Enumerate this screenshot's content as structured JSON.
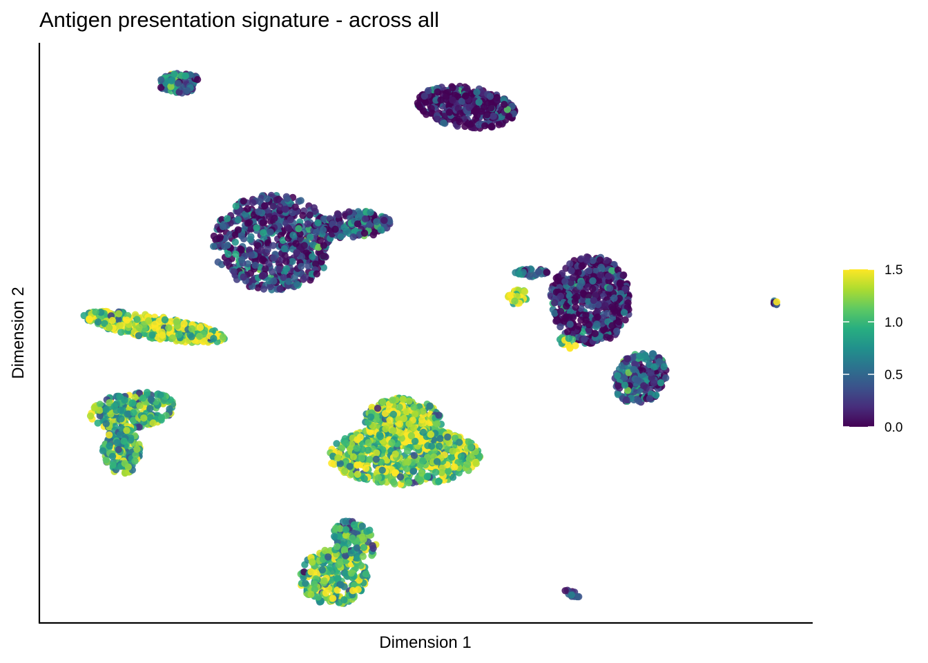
{
  "chart_data": {
    "type": "scatter",
    "title": "Antigen presentation signature - across all",
    "xlabel": "Dimension 1",
    "ylabel": "Dimension 2",
    "xlim": [
      0,
      100
    ],
    "ylim": [
      0,
      100
    ],
    "x_ticks_shown": false,
    "y_ticks_shown": false,
    "grid": false,
    "colorbar": {
      "palette": "viridis",
      "range": [
        0.0,
        1.5
      ],
      "ticks": [
        {
          "value": 0.0,
          "label": "0.0"
        },
        {
          "value": 0.5,
          "label": "0.5"
        },
        {
          "value": 1.0,
          "label": "1.0"
        },
        {
          "value": 1.5,
          "label": "1.5"
        }
      ],
      "placement": "right"
    },
    "clusters": [
      {
        "cx": 18.1,
        "cy": 93.1,
        "rx": 2.6,
        "ry": 1.8,
        "rot": 5,
        "mean": 0.5,
        "n": 90
      },
      {
        "cx": 55.2,
        "cy": 88.9,
        "rx": 6.4,
        "ry": 3.5,
        "rot": -12,
        "mean": 0.05,
        "n": 380
      },
      {
        "cx": 30.2,
        "cy": 65.6,
        "rx": 7.8,
        "ry": 8.3,
        "rot": 0,
        "mean": 0.25,
        "n": 620
      },
      {
        "cx": 40.4,
        "cy": 68.5,
        "rx": 5.0,
        "ry": 2.4,
        "rot": 8,
        "mean": 0.3,
        "n": 160
      },
      {
        "cx": 71.3,
        "cy": 55.7,
        "rx": 5.2,
        "ry": 7.6,
        "rot": 0,
        "mean": 0.1,
        "n": 560
      },
      {
        "cx": 77.7,
        "cy": 42.2,
        "rx": 3.3,
        "ry": 4.6,
        "rot": -15,
        "mean": 0.4,
        "n": 240
      },
      {
        "cx": 68.2,
        "cy": 48.3,
        "rx": 1.5,
        "ry": 1.0,
        "rot": 0,
        "mean": 1.4,
        "n": 14
      },
      {
        "cx": 61.8,
        "cy": 56.2,
        "rx": 1.2,
        "ry": 1.6,
        "rot": 0,
        "mean": 1.3,
        "n": 30
      },
      {
        "cx": 63.8,
        "cy": 60.4,
        "rx": 2.3,
        "ry": 0.8,
        "rot": 0,
        "mean": 0.5,
        "n": 40
      },
      {
        "cx": 95.1,
        "cy": 55.2,
        "rx": 0.35,
        "ry": 0.45,
        "rot": 0,
        "mean": 0.5,
        "n": 10
      },
      {
        "cx": 14.8,
        "cy": 51.0,
        "rx": 9.5,
        "ry": 1.9,
        "rot": -12,
        "mean": 1.25,
        "n": 380
      },
      {
        "cx": 12.0,
        "cy": 36.6,
        "rx": 5.5,
        "ry": 3.1,
        "rot": 12,
        "mean": 0.95,
        "n": 240
      },
      {
        "cx": 10.7,
        "cy": 29.6,
        "rx": 2.5,
        "ry": 4.0,
        "rot": 0,
        "mean": 0.95,
        "n": 150
      },
      {
        "cx": 47.2,
        "cy": 28.8,
        "rx": 9.8,
        "ry": 5.0,
        "rot": 0,
        "mean": 1.15,
        "n": 720
      },
      {
        "cx": 47.0,
        "cy": 34.8,
        "rx": 5.0,
        "ry": 4.0,
        "rot": 0,
        "mean": 1.2,
        "n": 300
      },
      {
        "cx": 38.0,
        "cy": 7.9,
        "rx": 4.4,
        "ry": 4.8,
        "rot": 0,
        "mean": 1.1,
        "n": 280
      },
      {
        "cx": 40.8,
        "cy": 14.2,
        "rx": 2.6,
        "ry": 3.6,
        "rot": 25,
        "mean": 0.9,
        "n": 130
      },
      {
        "cx": 68.9,
        "cy": 5.0,
        "rx": 1.1,
        "ry": 0.45,
        "rot": -35,
        "mean": 0.3,
        "n": 14
      }
    ]
  }
}
